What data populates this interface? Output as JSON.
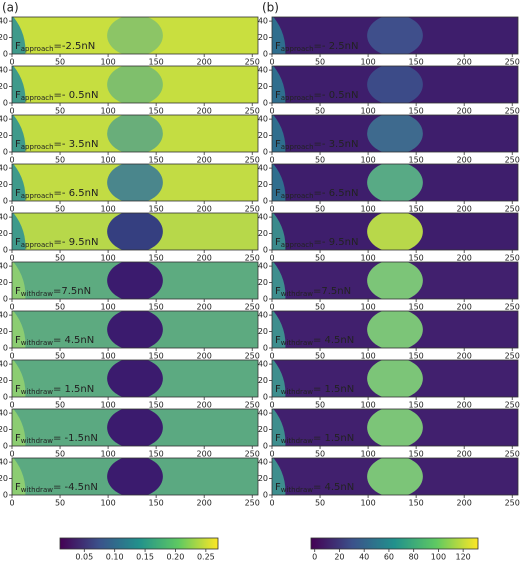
{
  "panels": [
    {
      "label": "(a)",
      "rows": [
        {
          "symbol": "F",
          "sub": "approach",
          "value": "=-2.5nN"
        },
        {
          "symbol": "F",
          "sub": "approach",
          "value": "=- 0.5nN"
        },
        {
          "symbol": "F",
          "sub": "approach",
          "value": "=- 3.5nN"
        },
        {
          "symbol": "F",
          "sub": "approach",
          "value": "=- 6.5nN"
        },
        {
          "symbol": "F",
          "sub": "approach",
          "value": "=- 9.5nN"
        },
        {
          "symbol": "F",
          "sub": "withdraw",
          "value": "=7.5nN"
        },
        {
          "symbol": "F",
          "sub": "withdraw",
          "value": "= 4.5nN"
        },
        {
          "symbol": "F",
          "sub": "withdraw",
          "value": "= 1.5nN"
        },
        {
          "symbol": "F",
          "sub": "withdraw",
          "value": "= -1.5nN"
        },
        {
          "symbol": "F",
          "sub": "withdraw",
          "value": "= -4.5nN"
        }
      ],
      "colorbar": {
        "lim": [
          0.01,
          0.27
        ],
        "ticks": [
          0.05,
          {
            "value": 0.1,
            "label": "0.10"
          },
          0.15,
          {
            "value": 0.2,
            "label": "0.20"
          },
          0.25
        ]
      }
    },
    {
      "label": "(b)",
      "rows": [
        {
          "symbol": "F",
          "sub": "approach",
          "value": "=- 2.5nN"
        },
        {
          "symbol": "F",
          "sub": "approach",
          "value": "=- 0.5nN"
        },
        {
          "symbol": "F",
          "sub": "approach",
          "value": "=- 3.5nN"
        },
        {
          "symbol": "F",
          "sub": "approach",
          "value": "=- 6.5nN"
        },
        {
          "symbol": "F",
          "sub": "approach",
          "value": "=- 9.5nN"
        },
        {
          "symbol": "F",
          "sub": "withdraw",
          "value": "=7.5nN"
        },
        {
          "symbol": "F",
          "sub": "withdraw",
          "value": "= 4.5nN"
        },
        {
          "symbol": "F",
          "sub": "withdraw",
          "value": "= 1.5nN"
        },
        {
          "symbol": "F",
          "sub": "withdraw",
          "value": "= 1.5nN"
        },
        {
          "symbol": "F",
          "sub": "withdraw",
          "value": "= 4.5nN"
        }
      ],
      "colorbar": {
        "lim": [
          -3,
          132
        ],
        "ticks": [
          0,
          20,
          40,
          60,
          80,
          100,
          120
        ]
      }
    }
  ],
  "xlim": [
    0,
    256
  ],
  "xticks": [
    0,
    50,
    100,
    150,
    200,
    250
  ],
  "ylim": [
    0,
    45
  ],
  "yticks": [
    0,
    20,
    40
  ]
}
